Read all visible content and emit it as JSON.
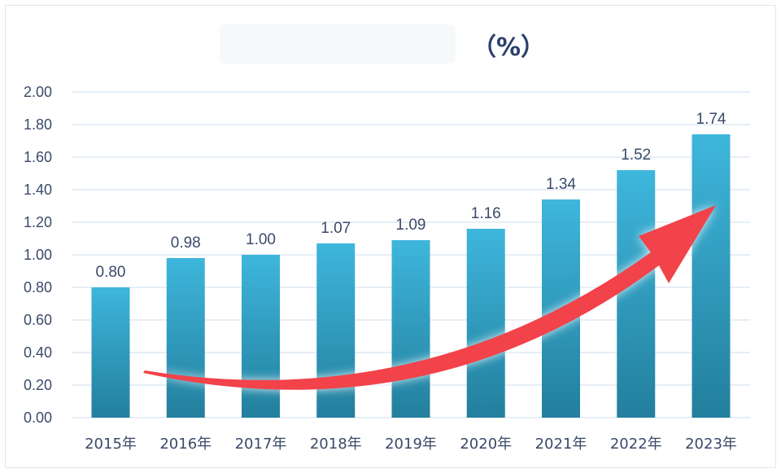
{
  "chart_data": {
    "type": "bar",
    "title": "（%）",
    "categories": [
      "2015年",
      "2016年",
      "2017年",
      "2018年",
      "2019年",
      "2020年",
      "2021年",
      "2022年",
      "2023年"
    ],
    "values": [
      0.8,
      0.98,
      1.0,
      1.07,
      1.09,
      1.16,
      1.34,
      1.52,
      1.74
    ],
    "value_labels": [
      "0.80",
      "0.98",
      "1.00",
      "1.07",
      "1.09",
      "1.16",
      "1.34",
      "1.52",
      "1.74"
    ],
    "yticks": [
      "0.00",
      "0.20",
      "0.40",
      "0.60",
      "0.80",
      "1.00",
      "1.20",
      "1.40",
      "1.60",
      "1.80",
      "2.00"
    ],
    "ylim": [
      0,
      2.0
    ],
    "xlabel": "",
    "ylabel": "",
    "grid": true,
    "annotation": "upward-trend-arrow"
  },
  "colors": {
    "bar_top": "#3eb6dc",
    "bar_bottom": "#237f9d",
    "grid": "#d6e3f0",
    "arrow": "#f2424a",
    "arrow_glow": "#ffffff"
  }
}
